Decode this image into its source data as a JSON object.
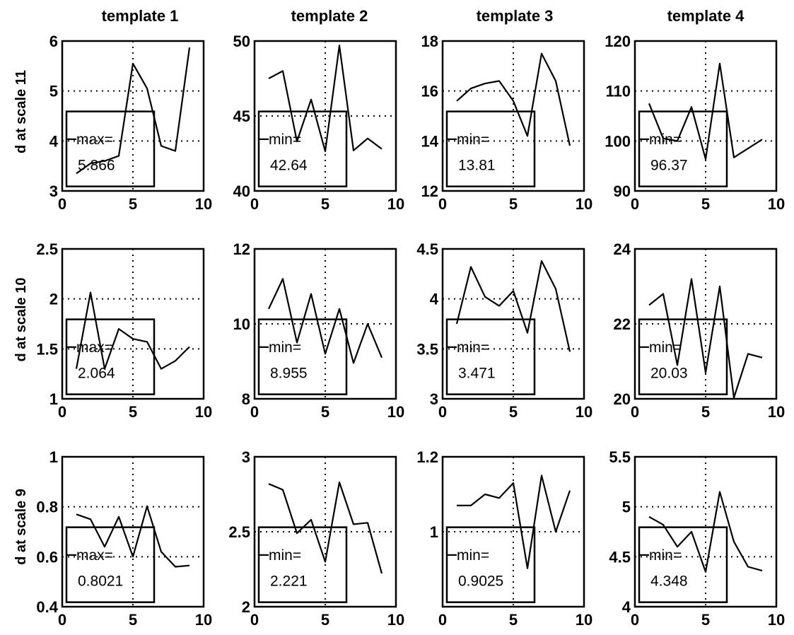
{
  "column_titles": [
    "template 1",
    "template 2",
    "template 3",
    "template 4"
  ],
  "row_labels": [
    "d at scale 11",
    "d at scale 10",
    "d at scale 9"
  ],
  "chart_data": [
    {
      "type": "line",
      "row": 0,
      "col": 0,
      "xlim": [
        0,
        10
      ],
      "ylim": [
        3,
        6
      ],
      "xticks": [
        "0",
        "5",
        "10"
      ],
      "yticks": [
        "3",
        "4",
        "5",
        "6"
      ],
      "grid": true,
      "x": [
        1,
        2,
        3,
        4,
        5,
        6,
        7,
        8,
        9
      ],
      "y": [
        3.35,
        3.55,
        3.6,
        3.7,
        5.55,
        5.05,
        3.9,
        3.8,
        5.87
      ],
      "annotation": {
        "label": "max=",
        "value": "5.866"
      }
    },
    {
      "type": "line",
      "row": 0,
      "col": 1,
      "xlim": [
        0,
        10
      ],
      "ylim": [
        40,
        50
      ],
      "xticks": [
        "0",
        "5",
        "10"
      ],
      "yticks": [
        "40",
        "45",
        "50"
      ],
      "grid": true,
      "x": [
        1,
        2,
        3,
        4,
        5,
        6,
        7,
        8,
        9
      ],
      "y": [
        47.5,
        48,
        43.3,
        46.1,
        42.64,
        49.7,
        42.7,
        43.5,
        42.8
      ],
      "annotation": {
        "label": "min=",
        "value": "42.64"
      }
    },
    {
      "type": "line",
      "row": 0,
      "col": 2,
      "xlim": [
        0,
        10
      ],
      "ylim": [
        12,
        18
      ],
      "xticks": [
        "0",
        "5",
        "10"
      ],
      "yticks": [
        "12",
        "14",
        "16",
        "18"
      ],
      "grid": true,
      "x": [
        1,
        2,
        3,
        4,
        5,
        6,
        7,
        8,
        9
      ],
      "y": [
        15.6,
        16.1,
        16.3,
        16.4,
        15.6,
        14.2,
        17.5,
        16.4,
        13.81
      ],
      "annotation": {
        "label": "min=",
        "value": "13.81"
      }
    },
    {
      "type": "line",
      "row": 0,
      "col": 3,
      "xlim": [
        0,
        10
      ],
      "ylim": [
        90,
        120
      ],
      "xticks": [
        "0",
        "5",
        "10"
      ],
      "yticks": [
        "90",
        "100",
        "110",
        "120"
      ],
      "grid": true,
      "x": [
        1,
        2,
        3,
        4,
        5,
        6,
        7,
        8,
        9
      ],
      "y": [
        107.5,
        100.5,
        100,
        106.8,
        96.37,
        115.5,
        96.7,
        98.5,
        100.3
      ],
      "annotation": {
        "label": "min=",
        "value": "96.37"
      }
    },
    {
      "type": "line",
      "row": 1,
      "col": 0,
      "xlim": [
        0,
        10
      ],
      "ylim": [
        1,
        2.5
      ],
      "xticks": [
        "0",
        "5",
        "10"
      ],
      "yticks": [
        "1",
        "1.5",
        "2",
        "2.5"
      ],
      "grid": true,
      "x": [
        1,
        2,
        3,
        4,
        5,
        6,
        7,
        8,
        9
      ],
      "y": [
        1.3,
        2.064,
        1.3,
        1.7,
        1.6,
        1.57,
        1.3,
        1.38,
        1.52
      ],
      "annotation": {
        "label": "max=",
        "value": "2.064"
      }
    },
    {
      "type": "line",
      "row": 1,
      "col": 1,
      "xlim": [
        0,
        10
      ],
      "ylim": [
        8,
        12
      ],
      "xticks": [
        "0",
        "5",
        "10"
      ],
      "yticks": [
        "8",
        "10",
        "12"
      ],
      "grid": true,
      "x": [
        1,
        2,
        3,
        4,
        5,
        6,
        7,
        8,
        9
      ],
      "y": [
        10.4,
        11.2,
        9.5,
        10.8,
        9.2,
        10.4,
        8.955,
        10,
        9.1
      ],
      "annotation": {
        "label": "min=",
        "value": "8.955"
      }
    },
    {
      "type": "line",
      "row": 1,
      "col": 2,
      "xlim": [
        0,
        10
      ],
      "ylim": [
        3,
        4.5
      ],
      "xticks": [
        "0",
        "5",
        "10"
      ],
      "yticks": [
        "3",
        "3.5",
        "4",
        "4.5"
      ],
      "grid": true,
      "x": [
        1,
        2,
        3,
        4,
        5,
        6,
        7,
        8,
        9
      ],
      "y": [
        3.75,
        4.32,
        4.02,
        3.93,
        4.08,
        3.66,
        4.38,
        4.1,
        3.471
      ],
      "annotation": {
        "label": "min=",
        "value": "3.471"
      }
    },
    {
      "type": "line",
      "row": 1,
      "col": 3,
      "xlim": [
        0,
        10
      ],
      "ylim": [
        20,
        24
      ],
      "xticks": [
        "0",
        "5",
        "10"
      ],
      "yticks": [
        "20",
        "22",
        "24"
      ],
      "grid": true,
      "x": [
        1,
        2,
        3,
        4,
        5,
        6,
        7,
        8,
        9
      ],
      "y": [
        22.5,
        22.8,
        20.9,
        23.2,
        20.7,
        23,
        20.03,
        21.2,
        21.1
      ],
      "annotation": {
        "label": "min=",
        "value": "20.03"
      }
    },
    {
      "type": "line",
      "row": 2,
      "col": 0,
      "xlim": [
        0,
        10
      ],
      "ylim": [
        0.4,
        1
      ],
      "xticks": [
        "0",
        "5",
        "10"
      ],
      "yticks": [
        "0.4",
        "0.6",
        "0.8",
        "1"
      ],
      "grid": true,
      "x": [
        1,
        2,
        3,
        4,
        5,
        6,
        7,
        8,
        9
      ],
      "y": [
        0.77,
        0.75,
        0.64,
        0.76,
        0.6,
        0.8021,
        0.62,
        0.56,
        0.565
      ],
      "annotation": {
        "label": "max=",
        "value": "0.8021"
      }
    },
    {
      "type": "line",
      "row": 2,
      "col": 1,
      "xlim": [
        0,
        10
      ],
      "ylim": [
        2,
        3
      ],
      "xticks": [
        "0",
        "5",
        "10"
      ],
      "yticks": [
        "2",
        "2.5",
        "3"
      ],
      "grid": true,
      "x": [
        1,
        2,
        3,
        4,
        5,
        6,
        7,
        8,
        9
      ],
      "y": [
        2.82,
        2.78,
        2.49,
        2.58,
        2.3,
        2.83,
        2.55,
        2.56,
        2.221
      ],
      "annotation": {
        "label": "min=",
        "value": "2.221"
      }
    },
    {
      "type": "line",
      "row": 2,
      "col": 2,
      "xlim": [
        0,
        10
      ],
      "ylim": [
        0.8,
        1.2
      ],
      "xticks": [
        "0",
        "5",
        "10"
      ],
      "yticks": [
        "1",
        "1.2"
      ],
      "grid": true,
      "x": [
        1,
        2,
        3,
        4,
        5,
        6,
        7,
        8,
        9
      ],
      "y": [
        1.07,
        1.07,
        1.1,
        1.09,
        1.13,
        0.9025,
        1.15,
        1,
        1.11
      ],
      "annotation": {
        "label": "min=",
        "value": "0.9025"
      }
    },
    {
      "type": "line",
      "row": 2,
      "col": 3,
      "xlim": [
        0,
        10
      ],
      "ylim": [
        4,
        5.5
      ],
      "xticks": [
        "0",
        "5",
        "10"
      ],
      "yticks": [
        "4",
        "4.5",
        "5",
        "5.5"
      ],
      "grid": true,
      "x": [
        1,
        2,
        3,
        4,
        5,
        6,
        7,
        8,
        9
      ],
      "y": [
        4.9,
        4.82,
        4.6,
        4.75,
        4.348,
        5.15,
        4.65,
        4.4,
        4.36
      ],
      "annotation": {
        "label": "min=",
        "value": "4.348"
      }
    }
  ]
}
